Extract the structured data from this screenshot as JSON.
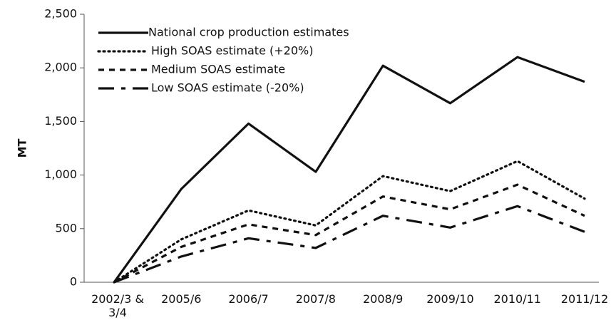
{
  "chart_data": {
    "type": "line",
    "y_label": "MT",
    "categories": [
      "2002/3 & 3/4",
      "2005/6",
      "2006/7",
      "2007/8",
      "2008/9",
      "2009/10",
      "2010/11",
      "2011/12"
    ],
    "series": [
      {
        "name": "National crop production estimates",
        "color": "#111111",
        "dash": "solid",
        "values": [
          0,
          870,
          1480,
          1030,
          2020,
          1670,
          2100,
          1870
        ]
      },
      {
        "name": "High SOAS estimate (+20%)",
        "color": "#111111",
        "dash": "dotted",
        "values": [
          0,
          400,
          670,
          530,
          990,
          850,
          1130,
          780
        ]
      },
      {
        "name": "Medium SOAS estimate",
        "color": "#111111",
        "dash": "dashed",
        "values": [
          0,
          330,
          540,
          440,
          800,
          680,
          910,
          620
        ]
      },
      {
        "name": "Low SOAS estimate (-20%)",
        "color": "#111111",
        "dash": "longdash",
        "values": [
          0,
          240,
          410,
          320,
          620,
          510,
          710,
          470
        ]
      }
    ],
    "ylim": [
      0,
      2500
    ],
    "yticks": [
      0,
      500,
      {
        "value": 1000,
        "label": "1,000"
      },
      {
        "value": 1500,
        "label": "1,500"
      },
      {
        "value": 2000,
        "label": "2,000"
      },
      {
        "value": 2500,
        "label": "2,500"
      }
    ],
    "legend": "top-left",
    "grid": false
  }
}
